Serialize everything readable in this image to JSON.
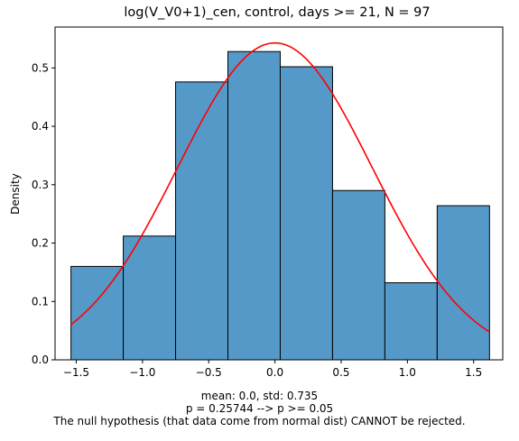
{
  "chart_data": {
    "type": "bar",
    "title": "log(V_V0+1)_cen, control, days >= 21, N = 97",
    "xlabel": "",
    "ylabel": "Density",
    "xlim": [
      -1.66,
      1.72
    ],
    "ylim": [
      0,
      0.57
    ],
    "xticks": [
      -1.5,
      -1.0,
      -0.5,
      0.0,
      0.5,
      1.0,
      1.5
    ],
    "xtick_labels": [
      "−1.5",
      "−1.0",
      "−0.5",
      "0.0",
      "0.5",
      "1.0",
      "1.5"
    ],
    "yticks": [
      0.0,
      0.1,
      0.2,
      0.3,
      0.4,
      0.5
    ],
    "ytick_labels": [
      "0.0",
      "0.1",
      "0.2",
      "0.3",
      "0.4",
      "0.5"
    ],
    "bin_edges": [
      -1.54,
      -1.145,
      -0.75,
      -0.355,
      0.04,
      0.435,
      0.83,
      1.225,
      1.62
    ],
    "values": [
      0.16,
      0.212,
      0.476,
      0.528,
      0.502,
      0.29,
      0.132,
      0.264
    ],
    "bar_color": "#5599c8",
    "edge_color": "#000000",
    "normal_curve": {
      "mean": 0.0,
      "std": 0.735,
      "color": "#ff0000",
      "x_range": [
        -1.54,
        1.62
      ]
    },
    "grid": false,
    "annotations": [
      "mean: 0.0, std: 0.735",
      "p = 0.25744 --> p >= 0.05",
      "The null hypothesis (that data come from normal dist) CANNOT be rejected."
    ]
  }
}
